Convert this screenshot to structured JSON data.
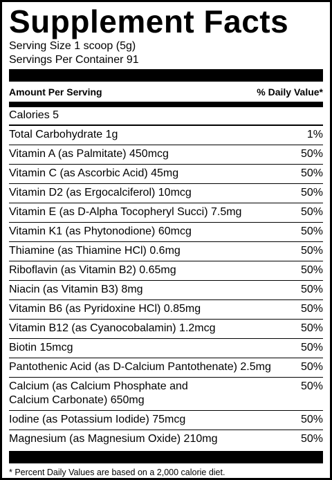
{
  "title": "Supplement Facts",
  "serving_size": "Serving Size 1 scoop (5g)",
  "servings_per_container": "Servings Per Container 91",
  "header": {
    "amount_label": "Amount Per Serving",
    "dv_label": "% Daily Value*"
  },
  "calories": "Calories 5",
  "rows": [
    {
      "name": "Total Carbohydrate 1g",
      "dv": "1%"
    },
    {
      "name": "Vitamin A (as Palmitate) 450mcg",
      "dv": "50%"
    },
    {
      "name": "Vitamin C (as Ascorbic Acid) 45mg",
      "dv": "50%"
    },
    {
      "name": "Vitamin D2 (as Ergocalciferol) 10mcg",
      "dv": "50%"
    },
    {
      "name": "Vitamin E (as D-Alpha Tocopheryl Succi) 7.5mg",
      "dv": "50%"
    },
    {
      "name": "Vitamin K1 (as Phytonodione) 60mcg",
      "dv": "50%"
    },
    {
      "name": "Thiamine (as Thiamine HCl) 0.6mg",
      "dv": "50%"
    },
    {
      "name": "Riboflavin (as Vitamin B2) 0.65mg",
      "dv": "50%"
    },
    {
      "name": "Niacin (as Vitamin B3) 8mg",
      "dv": "50%"
    },
    {
      "name": "Vitamin B6 (as Pyridoxine HCl) 0.85mg",
      "dv": "50%"
    },
    {
      "name": "Vitamin B12 (as Cyanocobalamin) 1.2mcg",
      "dv": "50%"
    },
    {
      "name": "Biotin 15mcg",
      "dv": "50%"
    },
    {
      "name": "Pantothenic Acid (as D-Calcium Pantothenate) 2.5mg",
      "dv": "50%"
    },
    {
      "name": "Calcium (as Calcium Phosphate and\nCalcium Carbonate) 650mg",
      "dv": "50%"
    },
    {
      "name": "Iodine (as Potassium Iodide) 75mcg",
      "dv": "50%"
    },
    {
      "name": "Magnesium (as Magnesium Oxide) 210mg",
      "dv": "50%"
    }
  ],
  "footnote": "* Percent Daily Values are based on a 2,000 calorie diet."
}
